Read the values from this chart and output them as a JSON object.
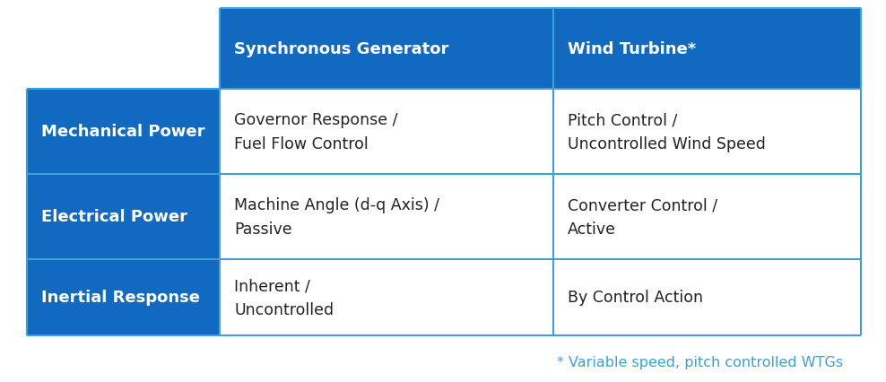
{
  "header_bg": "#1169C0",
  "header_text_color": "#FFFFFF",
  "row_header_bg": "#1169C0",
  "row_header_text_color": "#FFFFFF",
  "cell_bg": "#FFFFFF",
  "cell_text_color": "#222222",
  "border_color": "#3DA0D8",
  "footnote_color": "#3DA0D8",
  "col_headers": [
    "Synchronous Generator",
    "Wind Turbine*"
  ],
  "row_headers": [
    "Mechanical Power",
    "Electrical Power",
    "Inertial Response"
  ],
  "cells": [
    [
      "Governor Response /\nFuel Flow Control",
      "Pitch Control /\nUncontrolled Wind Speed"
    ],
    [
      "Machine Angle (d-q Axis) /\nPassive",
      "Converter Control /\nActive"
    ],
    [
      "Inherent /\nUncontrolled",
      "By Control Action"
    ]
  ],
  "footnote": "* Variable speed, pitch controlled WTGs",
  "header_fontsize": 13,
  "row_header_fontsize": 13,
  "cell_fontsize": 12.5,
  "footnote_fontsize": 11.5
}
